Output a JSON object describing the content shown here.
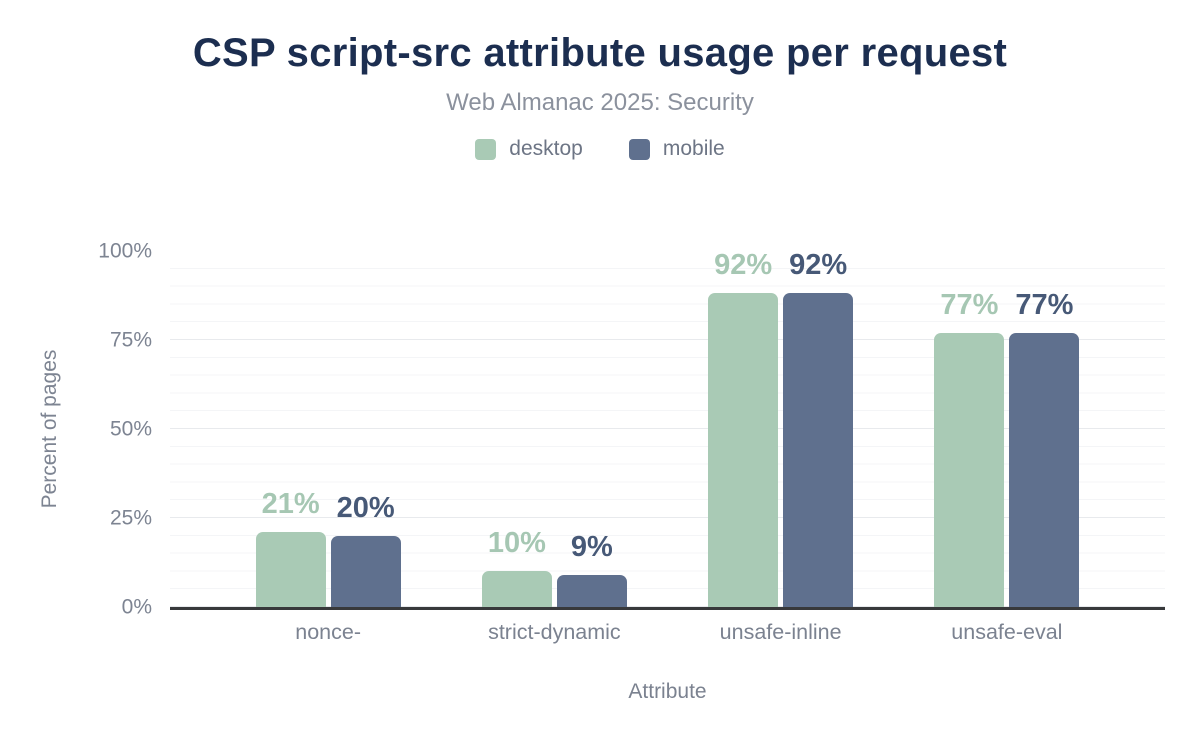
{
  "chart_data": {
    "type": "bar",
    "title": "CSP script-src attribute usage per request",
    "subtitle": "Web Almanac 2025: Security",
    "xlabel": "Attribute",
    "ylabel": "Percent of pages",
    "categories": [
      "nonce-",
      "strict-dynamic",
      "unsafe-inline",
      "unsafe-eval"
    ],
    "series": [
      {
        "name": "desktop",
        "color": "#a9cab5",
        "label_color": "#a6c7b3",
        "values": [
          21,
          10,
          92,
          77
        ],
        "value_labels": [
          "21%",
          "10%",
          "92%",
          "77%"
        ]
      },
      {
        "name": "mobile",
        "color": "#5f708e",
        "label_color": "#475977",
        "values": [
          20,
          9,
          92,
          77
        ],
        "value_labels": [
          "20%",
          "9%",
          "92%",
          "77%"
        ]
      }
    ],
    "yticks": [
      "0%",
      "25%",
      "50%",
      "75%",
      "100%"
    ],
    "ylim": [
      0,
      100
    ],
    "grid": {
      "major_step": 25,
      "minor_step": 5,
      "major_color": "#e8eaed",
      "minor_color": "#f4f5f7"
    },
    "axis_line_color": "#38393b",
    "title_color": "#1c2e50",
    "legend_position": "top"
  }
}
